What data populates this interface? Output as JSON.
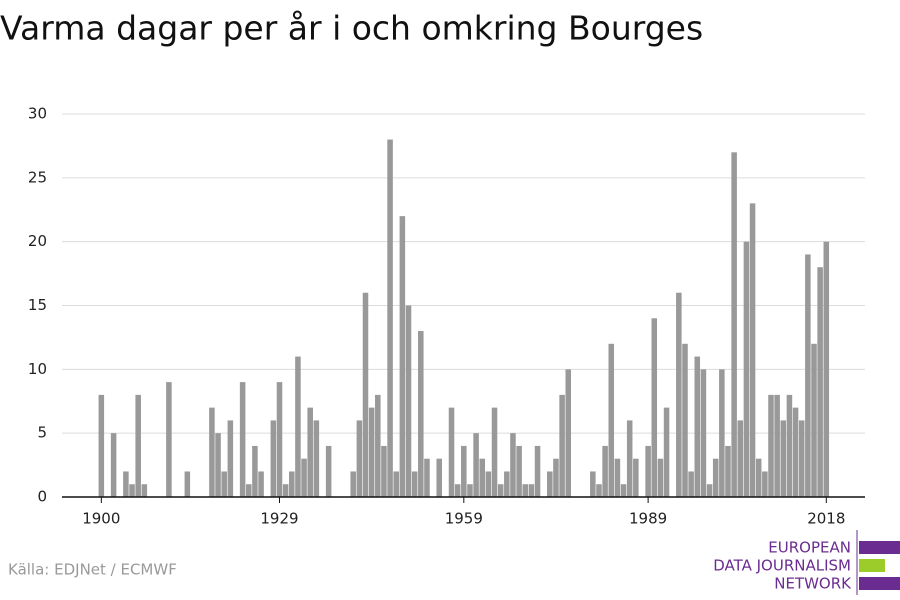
{
  "chart_data": {
    "type": "bar",
    "title": "Varma dagar per år i och omkring Bourges",
    "x": [
      1900,
      1901,
      1902,
      1903,
      1904,
      1905,
      1906,
      1907,
      1908,
      1909,
      1910,
      1911,
      1912,
      1913,
      1914,
      1915,
      1916,
      1917,
      1918,
      1919,
      1920,
      1921,
      1922,
      1923,
      1924,
      1925,
      1926,
      1927,
      1928,
      1929,
      1930,
      1931,
      1932,
      1933,
      1934,
      1935,
      1936,
      1937,
      1938,
      1939,
      1940,
      1941,
      1942,
      1943,
      1944,
      1945,
      1946,
      1947,
      1948,
      1949,
      1950,
      1951,
      1952,
      1953,
      1954,
      1955,
      1956,
      1957,
      1958,
      1959,
      1960,
      1961,
      1962,
      1963,
      1964,
      1965,
      1966,
      1967,
      1968,
      1969,
      1970,
      1971,
      1972,
      1973,
      1974,
      1975,
      1976,
      1977,
      1978,
      1979,
      1980,
      1981,
      1982,
      1983,
      1984,
      1985,
      1986,
      1987,
      1988,
      1989,
      1990,
      1991,
      1992,
      1993,
      1994,
      1995,
      1996,
      1997,
      1998,
      1999,
      2000,
      2001,
      2002,
      2003,
      2004,
      2005,
      2006,
      2007,
      2008,
      2009,
      2010,
      2011,
      2012,
      2013,
      2014,
      2015,
      2016,
      2017,
      2018
    ],
    "values": [
      8,
      0,
      5,
      0,
      2,
      1,
      8,
      1,
      0,
      0,
      0,
      9,
      0,
      0,
      2,
      0,
      0,
      0,
      7,
      5,
      2,
      6,
      0,
      9,
      1,
      4,
      2,
      0,
      6,
      9,
      1,
      2,
      11,
      3,
      7,
      6,
      0,
      4,
      0,
      0,
      0,
      2,
      6,
      16,
      7,
      8,
      4,
      28,
      2,
      22,
      15,
      2,
      13,
      3,
      0,
      3,
      0,
      7,
      1,
      4,
      1,
      5,
      3,
      2,
      7,
      1,
      2,
      5,
      4,
      1,
      1,
      4,
      0,
      2,
      3,
      8,
      10,
      0,
      0,
      0,
      2,
      1,
      4,
      12,
      3,
      1,
      6,
      3,
      0,
      4,
      14,
      3,
      7,
      0,
      16,
      12,
      2,
      11,
      10,
      1,
      3,
      10,
      4,
      27,
      6,
      20,
      23,
      3,
      2,
      8,
      8,
      6,
      8,
      7,
      6,
      19,
      12,
      18,
      20
    ],
    "color": "#999999",
    "xlim": [
      1893.6,
      2024.3
    ],
    "xticks": [
      1900,
      1929,
      1959,
      1989,
      2018
    ],
    "ylim": [
      0,
      30
    ],
    "yticks": [
      0,
      5,
      10,
      15,
      20,
      25,
      30
    ],
    "grid": true
  },
  "footer": {
    "source": "Källa: EDJNet / ECMWF",
    "logo": [
      "EUROPEAN",
      "DATA JOURNALISM",
      "NETWORK"
    ]
  }
}
